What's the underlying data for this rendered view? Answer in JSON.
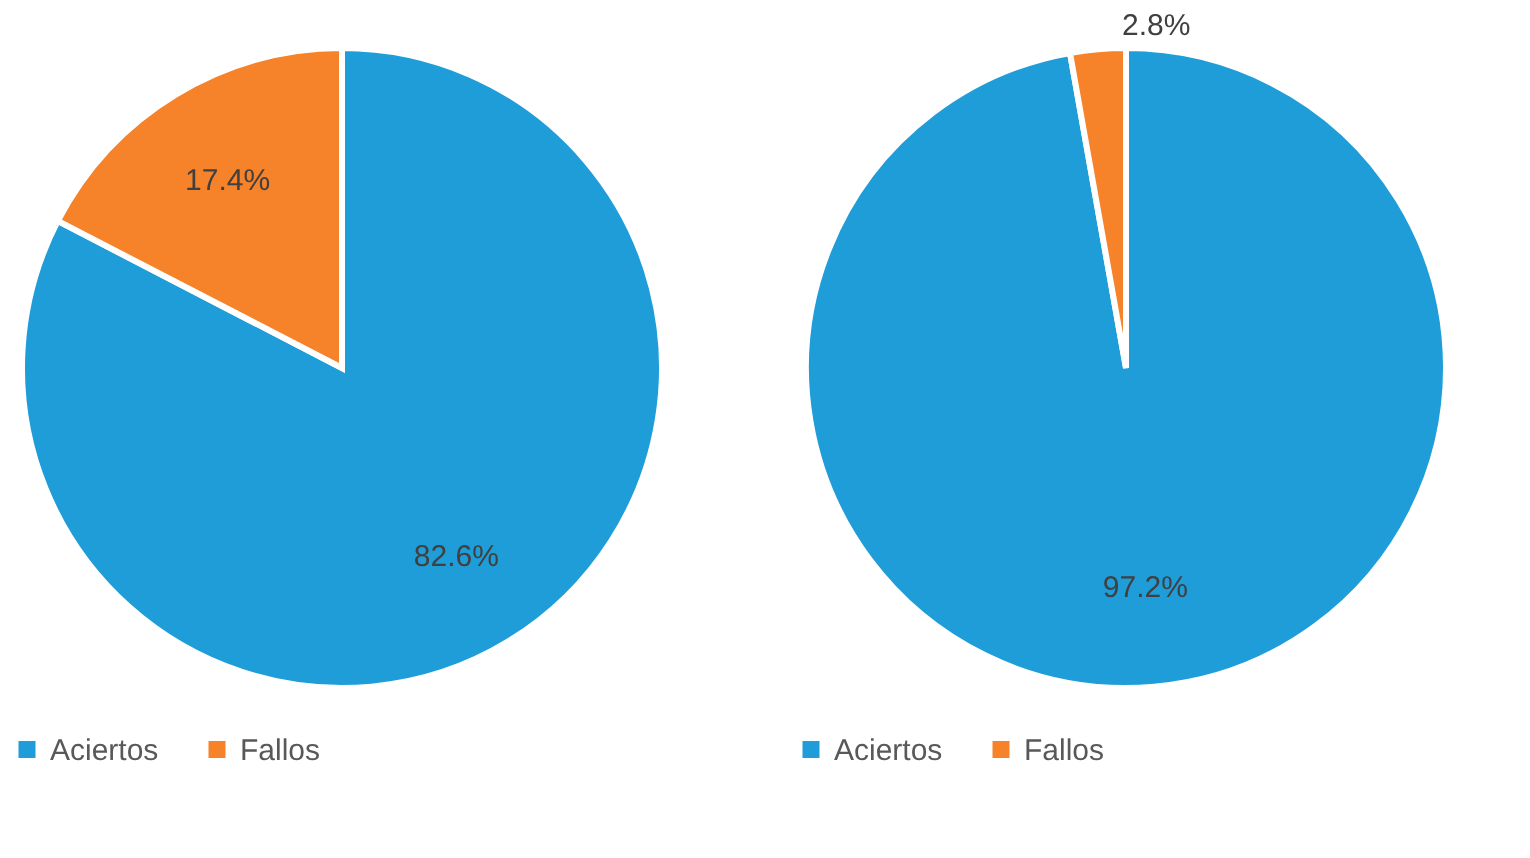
{
  "chart_data": [
    {
      "type": "pie",
      "categories": [
        "Aciertos",
        "Fallos"
      ],
      "values": [
        82.6,
        17.4
      ],
      "colors": [
        "#1f9dd9",
        "#f6822a"
      ],
      "value_labels": [
        "82.6%",
        "17.4%"
      ],
      "legend": "bottom"
    },
    {
      "type": "pie",
      "categories": [
        "Aciertos",
        "Fallos"
      ],
      "values": [
        97.2,
        2.8
      ],
      "colors": [
        "#1f9dd9",
        "#f6822a"
      ],
      "value_labels": [
        "97.2%",
        "2.8%"
      ],
      "legend": "bottom"
    }
  ]
}
